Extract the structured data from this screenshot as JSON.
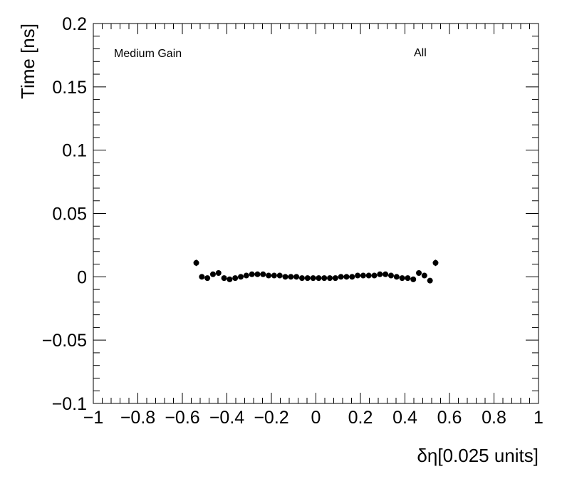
{
  "chart_data": {
    "type": "scatter",
    "xlabel": "δη[0.025 units]",
    "ylabel": "Time [ns]",
    "xlim": [
      -1,
      1
    ],
    "ylim": [
      -0.1,
      0.2
    ],
    "x_ticks": [
      {
        "value": -1,
        "label": "−1"
      },
      {
        "value": -0.8,
        "label": "−0.8"
      },
      {
        "value": -0.6,
        "label": "−0.6"
      },
      {
        "value": -0.4,
        "label": "−0.4"
      },
      {
        "value": -0.2,
        "label": "−0.2"
      },
      {
        "value": 0,
        "label": "0"
      },
      {
        "value": 0.2,
        "label": "0.2"
      },
      {
        "value": 0.4,
        "label": "0.4"
      },
      {
        "value": 0.6,
        "label": "0.6"
      },
      {
        "value": 0.8,
        "label": "0.8"
      },
      {
        "value": 1,
        "label": "1"
      }
    ],
    "y_ticks": [
      {
        "value": -0.1,
        "label": "−0.1"
      },
      {
        "value": -0.05,
        "label": "−0.05"
      },
      {
        "value": 0,
        "label": "0"
      },
      {
        "value": 0.05,
        "label": "0.05"
      },
      {
        "value": 0.1,
        "label": "0.1"
      },
      {
        "value": 0.15,
        "label": "0.15"
      },
      {
        "value": 0.2,
        "label": "0.2"
      }
    ],
    "annotations": {
      "left": "Medium Gain",
      "right": "All"
    },
    "grid": false,
    "series": [
      {
        "x": [
          -0.5375,
          -0.5125,
          -0.4875,
          -0.4625,
          -0.4375,
          -0.4125,
          -0.3875,
          -0.3625,
          -0.3375,
          -0.3125,
          -0.2875,
          -0.2625,
          -0.2375,
          -0.2125,
          -0.1875,
          -0.1625,
          -0.1375,
          -0.1125,
          -0.0875,
          -0.0625,
          -0.0375,
          -0.0125,
          0.0125,
          0.0375,
          0.0625,
          0.0875,
          0.1125,
          0.1375,
          0.1625,
          0.1875,
          0.2125,
          0.2375,
          0.2625,
          0.2875,
          0.3125,
          0.3375,
          0.3625,
          0.3875,
          0.4125,
          0.4375,
          0.4625,
          0.4875,
          0.5125,
          0.5375
        ],
        "y": [
          0.011,
          0.0,
          -0.001,
          0.002,
          0.003,
          -0.001,
          -0.002,
          -0.001,
          0.0,
          0.001,
          0.002,
          0.002,
          0.002,
          0.001,
          0.001,
          0.001,
          0.0,
          0.0,
          0.0,
          -0.001,
          -0.001,
          -0.001,
          -0.001,
          -0.001,
          -0.001,
          -0.001,
          0.0,
          0.0,
          0.0,
          0.001,
          0.001,
          0.001,
          0.001,
          0.002,
          0.002,
          0.001,
          0.0,
          -0.001,
          -0.001,
          -0.002,
          0.003,
          0.001,
          -0.003,
          0.011
        ],
        "err": [
          0.0025,
          0.001,
          0.001,
          0.001,
          0.001,
          0.001,
          0.001,
          0.001,
          0.001,
          0.001,
          0.001,
          0.001,
          0.001,
          0.001,
          0.001,
          0.001,
          0.001,
          0.001,
          0.001,
          0.001,
          0.001,
          0.001,
          0.001,
          0.001,
          0.001,
          0.001,
          0.001,
          0.001,
          0.001,
          0.001,
          0.001,
          0.001,
          0.001,
          0.001,
          0.001,
          0.001,
          0.001,
          0.001,
          0.001,
          0.001,
          0.001,
          0.001,
          0.001,
          0.0025
        ]
      }
    ]
  }
}
